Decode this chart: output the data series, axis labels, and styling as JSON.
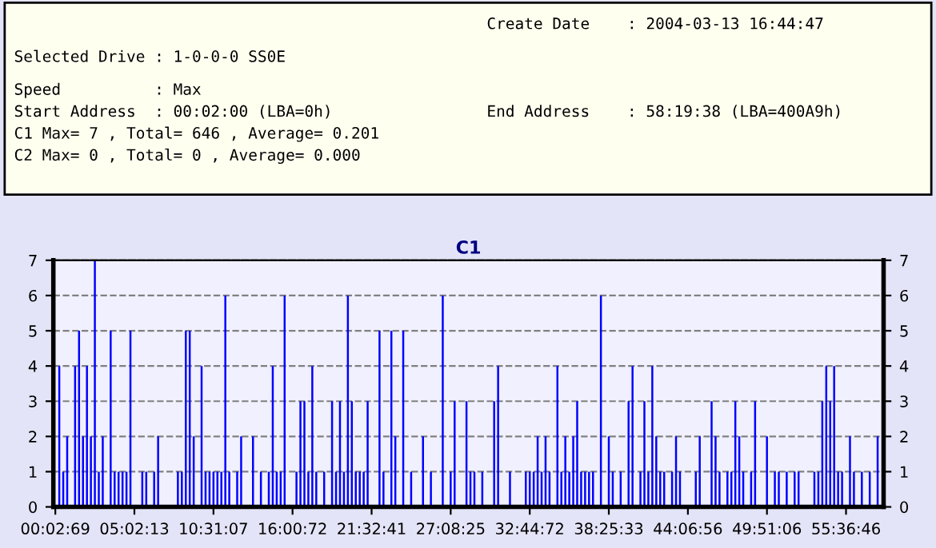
{
  "chart_data": {
    "type": "bar",
    "title": "C1",
    "annotations": [
      "Create Date    : 2004-03-13 16:44:47",
      "Selected Drive : 1-0-0-0 SS0E",
      "Speed          : Max",
      "Start Address  : 00:02:00 (LBA=0h)",
      "End Address    : 58:19:38 (LBA=400A9h)",
      "C1 Max= 7 , Total= 646 , Average= 0.201",
      "C2 Max= 0 , Total= 0 , Average= 0.000"
    ],
    "categories": [
      "00:02:69",
      null,
      null,
      null,
      null,
      null,
      null,
      null,
      null,
      null,
      null,
      null,
      null,
      null,
      null,
      null,
      null,
      null,
      null,
      null,
      "05:02:13",
      null,
      null,
      null,
      null,
      null,
      null,
      null,
      null,
      null,
      null,
      null,
      null,
      null,
      null,
      null,
      null,
      null,
      null,
      null,
      "10:31:07",
      null,
      null,
      null,
      null,
      null,
      null,
      null,
      null,
      null,
      null,
      null,
      null,
      null,
      null,
      null,
      null,
      null,
      null,
      null,
      "16:00:72",
      null,
      null,
      null,
      null,
      null,
      null,
      null,
      null,
      null,
      null,
      null,
      null,
      null,
      null,
      null,
      null,
      null,
      null,
      null,
      "21:32:41",
      null,
      null,
      null,
      null,
      null,
      null,
      null,
      null,
      null,
      null,
      null,
      null,
      null,
      null,
      null,
      null,
      null,
      null,
      null,
      "27:08:25",
      null,
      null,
      null,
      null,
      null,
      null,
      null,
      null,
      null,
      null,
      null,
      null,
      null,
      null,
      null,
      null,
      null,
      null,
      null,
      "32:44:72",
      null,
      null,
      null,
      null,
      null,
      null,
      null,
      null,
      null,
      null,
      null,
      null,
      null,
      null,
      null,
      null,
      null,
      null,
      null,
      "38:25:33",
      null,
      null,
      null,
      null,
      null,
      null,
      null,
      null,
      null,
      null,
      null,
      null,
      null,
      null,
      null,
      null,
      null,
      null,
      null,
      "44:06:56",
      null,
      null,
      null,
      null,
      null,
      null,
      null,
      null,
      null,
      null,
      null,
      null,
      null,
      null,
      null,
      null,
      null,
      null,
      null,
      "49:51:06",
      null,
      null,
      null,
      null,
      null,
      null,
      null,
      null,
      null,
      null,
      null,
      null,
      null,
      null,
      null,
      null,
      null,
      null,
      null,
      "55:36:46",
      null,
      null,
      null,
      null,
      null,
      null,
      null,
      null,
      null
    ],
    "series": [
      {
        "color": "#0000ff",
        "values": [
          0,
          4,
          1,
          2,
          0,
          4,
          5,
          2,
          4,
          2,
          7,
          1,
          2,
          0,
          5,
          1,
          1,
          1,
          1,
          5,
          0,
          0,
          1,
          1,
          0,
          1,
          2,
          0,
          0,
          0,
          0,
          1,
          1,
          5,
          5,
          2,
          0,
          4,
          1,
          1,
          1,
          1,
          1,
          6,
          1,
          0,
          1,
          2,
          0,
          0,
          2,
          0,
          1,
          0,
          1,
          4,
          1,
          1,
          6,
          0,
          0,
          1,
          3,
          3,
          1,
          4,
          1,
          0,
          1,
          0,
          3,
          1,
          3,
          1,
          6,
          3,
          1,
          1,
          1,
          3,
          0,
          0,
          5,
          1,
          0,
          5,
          2,
          0,
          5,
          0,
          1,
          0,
          0,
          2,
          0,
          1,
          0,
          0,
          6,
          0,
          1,
          3,
          0,
          0,
          3,
          1,
          1,
          0,
          1,
          0,
          0,
          3,
          4,
          0,
          0,
          1,
          0,
          0,
          0,
          1,
          1,
          1,
          2,
          1,
          2,
          1,
          0,
          4,
          1,
          2,
          1,
          2,
          3,
          1,
          1,
          1,
          1,
          0,
          6,
          0,
          2,
          1,
          0,
          1,
          0,
          3,
          4,
          0,
          1,
          3,
          1,
          4,
          2,
          1,
          1,
          0,
          1,
          2,
          1,
          0,
          0,
          0,
          1,
          2,
          0,
          0,
          3,
          2,
          1,
          0,
          1,
          1,
          3,
          2,
          1,
          0,
          1,
          3,
          0,
          0,
          2,
          0,
          1,
          1,
          0,
          1,
          0,
          1,
          1,
          0,
          0,
          0,
          1,
          1,
          3,
          4,
          3,
          4,
          1,
          1,
          0,
          2,
          1,
          0,
          1,
          0,
          1,
          0,
          2,
          0
        ]
      }
    ],
    "ylim": [
      0,
      7
    ],
    "yticks": [
      0,
      1,
      2,
      3,
      4,
      5,
      6,
      7
    ],
    "y2lim": [
      0,
      7
    ],
    "y2ticks": [
      0,
      1,
      2,
      3,
      4,
      5,
      6,
      7
    ],
    "grid": "y",
    "legend": false
  }
}
